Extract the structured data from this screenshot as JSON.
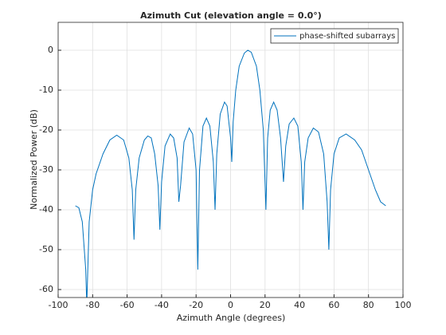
{
  "chart_data": {
    "type": "line",
    "title": "Azimuth Cut (elevation angle = 0.0°)",
    "xlabel": "Azimuth Angle (degrees)",
    "ylabel": "Normalized Power (dB)",
    "x": [
      -90,
      -88,
      -86,
      -84,
      -83.4,
      -82,
      -80,
      -78,
      -74,
      -70,
      -66,
      -62,
      -59,
      -57,
      -56,
      -55,
      -53,
      -50,
      -48,
      -46,
      -44,
      -42,
      -41,
      -40,
      -38,
      -35,
      -33,
      -31,
      -30,
      -29,
      -27,
      -24,
      -22,
      -20,
      -19,
      -18,
      -16,
      -14,
      -12,
      -10,
      -9,
      -8,
      -6,
      -3.5,
      -2,
      0,
      0.7,
      1.5,
      3,
      5,
      8,
      10,
      12,
      15,
      17,
      19,
      20.5,
      21.5,
      23,
      25,
      27,
      29,
      30.7,
      32,
      34,
      36.7,
      39,
      41,
      42,
      43,
      45,
      48,
      51,
      54,
      56,
      57,
      58,
      60,
      63,
      67,
      72,
      76,
      80,
      84,
      87,
      90
    ],
    "series": [
      {
        "name": "phase-shifted subarrays",
        "color": "#0072bd",
        "values": [
          -39,
          -39.5,
          -43,
          -55,
          -64,
          -43,
          -35,
          -31,
          -26,
          -22.5,
          -21.3,
          -22.5,
          -27,
          -35,
          -47.5,
          -35,
          -27,
          -22.5,
          -21.5,
          -22,
          -26,
          -34,
          -45,
          -33,
          -24,
          -21,
          -22,
          -27,
          -38,
          -34,
          -23,
          -19.5,
          -21,
          -30,
          -55,
          -30,
          -19,
          -17,
          -19,
          -28,
          -40,
          -26,
          -16,
          -13,
          -14,
          -22,
          -28,
          -18,
          -10,
          -4,
          -0.7,
          0,
          -0.5,
          -4,
          -10,
          -20,
          -40,
          -22,
          -15,
          -13,
          -15,
          -22,
          -33,
          -24,
          -18.5,
          -17,
          -19,
          -28,
          -40,
          -28,
          -22,
          -19.5,
          -20.5,
          -26,
          -38,
          -50,
          -35,
          -26,
          -22,
          -21,
          -22.5,
          -25,
          -30,
          -35,
          -38,
          -39
        ]
      }
    ],
    "xlim": [
      -100,
      100
    ],
    "xticks": [
      -100,
      -80,
      -60,
      -40,
      -20,
      0,
      20,
      40,
      60,
      80,
      100
    ],
    "ylim": [
      -62,
      7
    ],
    "yticks": [
      -60,
      -50,
      -40,
      -30,
      -20,
      -10,
      0
    ],
    "grid": true,
    "legend": "upper right"
  }
}
